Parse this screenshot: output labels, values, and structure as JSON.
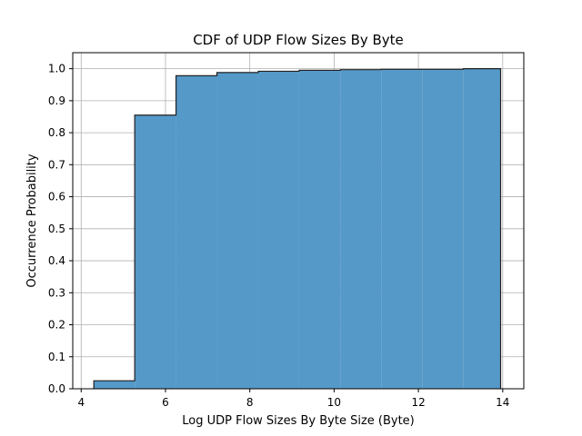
{
  "chart_data": {
    "type": "bar",
    "title": "CDF of UDP Flow Sizes By Byte",
    "xlabel": "Log UDP Flow Sizes By Byte Size (Byte)",
    "ylabel": "Occurrence Probability",
    "xlim": [
      3.8,
      14.5
    ],
    "ylim": [
      0.0,
      1.05
    ],
    "xticks": [
      4,
      6,
      8,
      10,
      12,
      14
    ],
    "yticks": [
      0.0,
      0.1,
      0.2,
      0.3,
      0.4,
      0.5,
      0.6,
      0.7,
      0.8,
      0.9,
      1.0
    ],
    "grid": true,
    "bins": [
      {
        "x0": 4.3,
        "x1": 5.27,
        "value": 0.025
      },
      {
        "x0": 5.27,
        "x1": 6.25,
        "value": 0.855
      },
      {
        "x0": 6.25,
        "x1": 7.22,
        "value": 0.978
      },
      {
        "x0": 7.22,
        "x1": 8.2,
        "value": 0.988
      },
      {
        "x0": 8.2,
        "x1": 9.17,
        "value": 0.992
      },
      {
        "x0": 9.17,
        "x1": 10.15,
        "value": 0.995
      },
      {
        "x0": 10.15,
        "x1": 11.12,
        "value": 0.997
      },
      {
        "x0": 11.12,
        "x1": 12.09,
        "value": 0.998
      },
      {
        "x0": 12.09,
        "x1": 13.07,
        "value": 0.998
      },
      {
        "x0": 13.07,
        "x1": 13.95,
        "value": 1.0
      }
    ],
    "colors": {
      "bar": "#5599c8",
      "outline": "#222222",
      "grid": "#b0b0b0"
    }
  }
}
